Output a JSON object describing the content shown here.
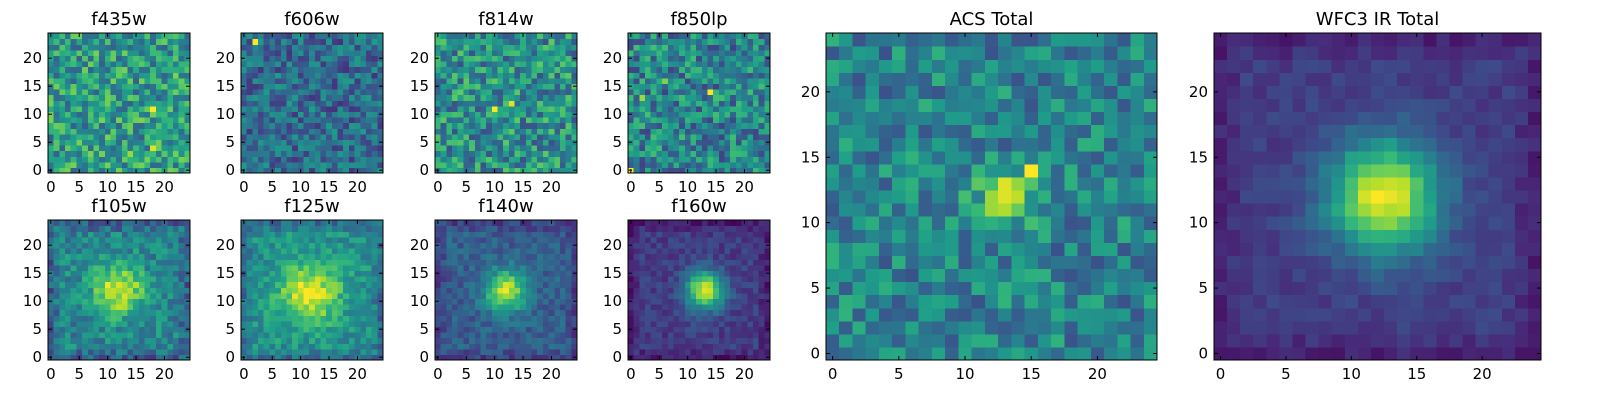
{
  "figure": {
    "colormap": "viridis",
    "colormap_stops": [
      "#440154",
      "#482878",
      "#3e4989",
      "#31688e",
      "#26828e",
      "#1f9e89",
      "#35b779",
      "#6ece58",
      "#b5de2b",
      "#fde725"
    ]
  },
  "chart_data": [
    {
      "type": "heatmap",
      "title": "f435w",
      "grid_size": [
        25,
        25
      ],
      "xlim": [
        -0.5,
        24.5
      ],
      "ylim": [
        -0.5,
        24.5
      ],
      "xticks": [
        "0",
        "5",
        "10",
        "15",
        "20"
      ],
      "yticks": [
        "0",
        "5",
        "10",
        "15",
        "20"
      ],
      "pattern": "noise",
      "base_level": 0.55,
      "noise_level": 0.5,
      "hotspots": [
        {
          "x": 18,
          "y": 11,
          "value": 1.0
        },
        {
          "x": 18,
          "y": 4,
          "value": 0.95
        },
        {
          "x": 14,
          "y": 3,
          "value": 0.85
        }
      ]
    },
    {
      "type": "heatmap",
      "title": "f606w",
      "grid_size": [
        25,
        25
      ],
      "xlim": [
        -0.5,
        24.5
      ],
      "ylim": [
        -0.5,
        24.5
      ],
      "xticks": [
        "0",
        "5",
        "10",
        "15",
        "20"
      ],
      "yticks": [
        "0",
        "5",
        "10",
        "15",
        "20"
      ],
      "pattern": "noise",
      "base_level": 0.35,
      "noise_level": 0.4,
      "hotspots": [
        {
          "x": 2,
          "y": 23,
          "value": 1.0
        }
      ]
    },
    {
      "type": "heatmap",
      "title": "f814w",
      "grid_size": [
        25,
        25
      ],
      "xlim": [
        -0.5,
        24.5
      ],
      "ylim": [
        -0.5,
        24.5
      ],
      "xticks": [
        "0",
        "5",
        "10",
        "15",
        "20"
      ],
      "yticks": [
        "0",
        "5",
        "10",
        "15",
        "20"
      ],
      "pattern": "noise",
      "base_level": 0.5,
      "noise_level": 0.5,
      "hotspots": [
        {
          "x": 10,
          "y": 11,
          "value": 1.0
        },
        {
          "x": 13,
          "y": 12,
          "value": 0.95
        }
      ]
    },
    {
      "type": "heatmap",
      "title": "f850lp",
      "grid_size": [
        25,
        25
      ],
      "xlim": [
        -0.5,
        24.5
      ],
      "ylim": [
        -0.5,
        24.5
      ],
      "xticks": [
        "0",
        "5",
        "10",
        "15",
        "20"
      ],
      "yticks": [
        "0",
        "5",
        "10",
        "15",
        "20"
      ],
      "pattern": "noise",
      "base_level": 0.45,
      "noise_level": 0.5,
      "hotspots": [
        {
          "x": 14,
          "y": 14,
          "value": 1.0
        },
        {
          "x": 0,
          "y": 0,
          "value": 1.0
        },
        {
          "x": 6,
          "y": 16,
          "value": 0.8
        },
        {
          "x": 2,
          "y": 13,
          "value": 0.85
        }
      ]
    },
    {
      "type": "heatmap",
      "title": "f105w",
      "grid_size": [
        25,
        25
      ],
      "xlim": [
        -0.5,
        24.5
      ],
      "ylim": [
        -0.5,
        24.5
      ],
      "xticks": [
        "0",
        "5",
        "10",
        "15",
        "20"
      ],
      "yticks": [
        "0",
        "5",
        "10",
        "15",
        "20"
      ],
      "pattern": "source",
      "center": [
        12,
        12
      ],
      "sigma": 3.2,
      "peak": 0.5,
      "base_level": 0.45,
      "noise_level": 0.3,
      "edge_dim": 0.15
    },
    {
      "type": "heatmap",
      "title": "f125w",
      "grid_size": [
        25,
        25
      ],
      "xlim": [
        -0.5,
        24.5
      ],
      "ylim": [
        -0.5,
        24.5
      ],
      "xticks": [
        "0",
        "5",
        "10",
        "15",
        "20"
      ],
      "yticks": [
        "0",
        "5",
        "10",
        "15",
        "20"
      ],
      "pattern": "source",
      "center": [
        11.5,
        11.5
      ],
      "sigma": 3.8,
      "peak": 0.45,
      "base_level": 0.5,
      "noise_level": 0.25,
      "edge_dim": 0.15
    },
    {
      "type": "heatmap",
      "title": "f140w",
      "grid_size": [
        25,
        25
      ],
      "xlim": [
        -0.5,
        24.5
      ],
      "ylim": [
        -0.5,
        24.5
      ],
      "xticks": [
        "0",
        "5",
        "10",
        "15",
        "20"
      ],
      "yticks": [
        "0",
        "5",
        "10",
        "15",
        "20"
      ],
      "pattern": "source",
      "center": [
        12,
        12
      ],
      "sigma": 2.6,
      "peak": 0.6,
      "base_level": 0.3,
      "noise_level": 0.2,
      "edge_dim": 0.1
    },
    {
      "type": "heatmap",
      "title": "f160w",
      "grid_size": [
        25,
        25
      ],
      "xlim": [
        -0.5,
        24.5
      ],
      "ylim": [
        -0.5,
        24.5
      ],
      "xticks": [
        "0",
        "5",
        "10",
        "15",
        "20"
      ],
      "yticks": [
        "0",
        "5",
        "10",
        "15",
        "20"
      ],
      "pattern": "source",
      "center": [
        13,
        12
      ],
      "sigma": 2.4,
      "peak": 0.75,
      "base_level": 0.18,
      "noise_level": 0.15,
      "edge_dim": 0.1
    },
    {
      "type": "heatmap",
      "title": "ACS Total",
      "grid_size": [
        25,
        25
      ],
      "xlim": [
        -0.5,
        24.5
      ],
      "ylim": [
        -0.5,
        24.5
      ],
      "xticks": [
        "0",
        "5",
        "10",
        "15",
        "20"
      ],
      "yticks": [
        "0",
        "5",
        "10",
        "15",
        "20"
      ],
      "pattern": "noise",
      "base_level": 0.45,
      "noise_level": 0.4,
      "center": [
        13,
        12
      ],
      "sigma": 1.5,
      "peak": 0.35,
      "hotspots": [
        {
          "x": 15,
          "y": 14,
          "value": 1.0
        },
        {
          "x": 13,
          "y": 13,
          "value": 0.95
        },
        {
          "x": 13,
          "y": 12,
          "value": 0.95
        },
        {
          "x": 12,
          "y": 11,
          "value": 0.85
        },
        {
          "x": 12,
          "y": 12,
          "value": 0.85
        }
      ]
    },
    {
      "type": "heatmap",
      "title": "WFC3 IR Total",
      "grid_size": [
        25,
        25
      ],
      "xlim": [
        -0.5,
        24.5
      ],
      "ylim": [
        -0.5,
        24.5
      ],
      "xticks": [
        "0",
        "5",
        "10",
        "15",
        "20"
      ],
      "yticks": [
        "0",
        "5",
        "10",
        "15",
        "20"
      ],
      "pattern": "source",
      "center": [
        12.5,
        12
      ],
      "sigma": 3.0,
      "peak": 0.8,
      "base_level": 0.18,
      "noise_level": 0.1,
      "edge_dim": 0.08
    }
  ]
}
